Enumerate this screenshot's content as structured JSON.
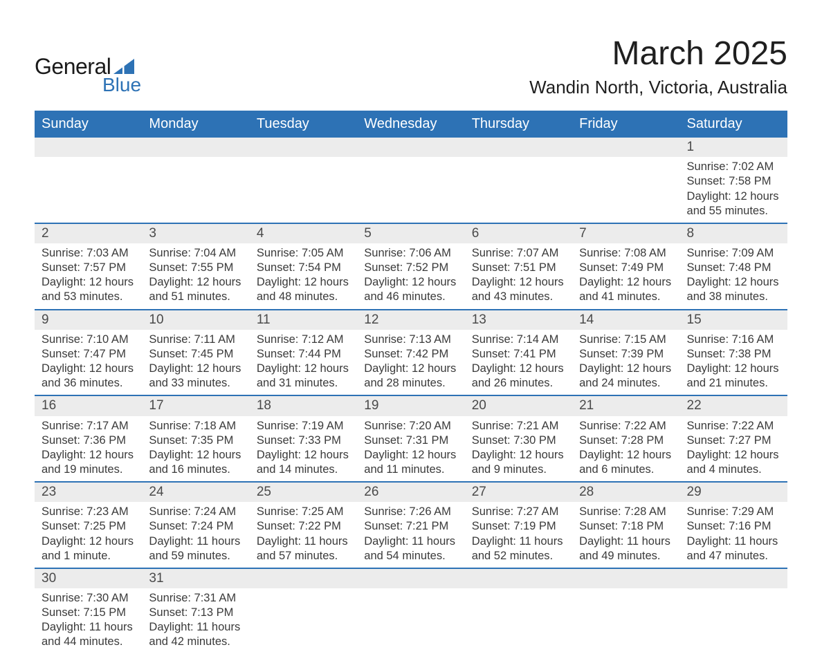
{
  "logo": {
    "text_general": "General",
    "text_blue": "Blue",
    "sail_color": "#2d72b5"
  },
  "title": "March 2025",
  "location": "Wandin North, Victoria, Australia",
  "header_bg": "#2d72b5",
  "header_text_color": "#ffffff",
  "daynum_bg": "#ececec",
  "border_color": "#2d72b5",
  "text_color": "#3a3a3a",
  "font_family": "Arial",
  "title_fontsize": 48,
  "location_fontsize": 26,
  "header_fontsize": 20,
  "body_fontsize": 16.5,
  "weekdays": [
    "Sunday",
    "Monday",
    "Tuesday",
    "Wednesday",
    "Thursday",
    "Friday",
    "Saturday"
  ],
  "weeks": [
    [
      null,
      null,
      null,
      null,
      null,
      null,
      {
        "n": "1",
        "sr": "Sunrise: 7:02 AM",
        "ss": "Sunset: 7:58 PM",
        "dl": "Daylight: 12 hours and 55 minutes."
      }
    ],
    [
      {
        "n": "2",
        "sr": "Sunrise: 7:03 AM",
        "ss": "Sunset: 7:57 PM",
        "dl": "Daylight: 12 hours and 53 minutes."
      },
      {
        "n": "3",
        "sr": "Sunrise: 7:04 AM",
        "ss": "Sunset: 7:55 PM",
        "dl": "Daylight: 12 hours and 51 minutes."
      },
      {
        "n": "4",
        "sr": "Sunrise: 7:05 AM",
        "ss": "Sunset: 7:54 PM",
        "dl": "Daylight: 12 hours and 48 minutes."
      },
      {
        "n": "5",
        "sr": "Sunrise: 7:06 AM",
        "ss": "Sunset: 7:52 PM",
        "dl": "Daylight: 12 hours and 46 minutes."
      },
      {
        "n": "6",
        "sr": "Sunrise: 7:07 AM",
        "ss": "Sunset: 7:51 PM",
        "dl": "Daylight: 12 hours and 43 minutes."
      },
      {
        "n": "7",
        "sr": "Sunrise: 7:08 AM",
        "ss": "Sunset: 7:49 PM",
        "dl": "Daylight: 12 hours and 41 minutes."
      },
      {
        "n": "8",
        "sr": "Sunrise: 7:09 AM",
        "ss": "Sunset: 7:48 PM",
        "dl": "Daylight: 12 hours and 38 minutes."
      }
    ],
    [
      {
        "n": "9",
        "sr": "Sunrise: 7:10 AM",
        "ss": "Sunset: 7:47 PM",
        "dl": "Daylight: 12 hours and 36 minutes."
      },
      {
        "n": "10",
        "sr": "Sunrise: 7:11 AM",
        "ss": "Sunset: 7:45 PM",
        "dl": "Daylight: 12 hours and 33 minutes."
      },
      {
        "n": "11",
        "sr": "Sunrise: 7:12 AM",
        "ss": "Sunset: 7:44 PM",
        "dl": "Daylight: 12 hours and 31 minutes."
      },
      {
        "n": "12",
        "sr": "Sunrise: 7:13 AM",
        "ss": "Sunset: 7:42 PM",
        "dl": "Daylight: 12 hours and 28 minutes."
      },
      {
        "n": "13",
        "sr": "Sunrise: 7:14 AM",
        "ss": "Sunset: 7:41 PM",
        "dl": "Daylight: 12 hours and 26 minutes."
      },
      {
        "n": "14",
        "sr": "Sunrise: 7:15 AM",
        "ss": "Sunset: 7:39 PM",
        "dl": "Daylight: 12 hours and 24 minutes."
      },
      {
        "n": "15",
        "sr": "Sunrise: 7:16 AM",
        "ss": "Sunset: 7:38 PM",
        "dl": "Daylight: 12 hours and 21 minutes."
      }
    ],
    [
      {
        "n": "16",
        "sr": "Sunrise: 7:17 AM",
        "ss": "Sunset: 7:36 PM",
        "dl": "Daylight: 12 hours and 19 minutes."
      },
      {
        "n": "17",
        "sr": "Sunrise: 7:18 AM",
        "ss": "Sunset: 7:35 PM",
        "dl": "Daylight: 12 hours and 16 minutes."
      },
      {
        "n": "18",
        "sr": "Sunrise: 7:19 AM",
        "ss": "Sunset: 7:33 PM",
        "dl": "Daylight: 12 hours and 14 minutes."
      },
      {
        "n": "19",
        "sr": "Sunrise: 7:20 AM",
        "ss": "Sunset: 7:31 PM",
        "dl": "Daylight: 12 hours and 11 minutes."
      },
      {
        "n": "20",
        "sr": "Sunrise: 7:21 AM",
        "ss": "Sunset: 7:30 PM",
        "dl": "Daylight: 12 hours and 9 minutes."
      },
      {
        "n": "21",
        "sr": "Sunrise: 7:22 AM",
        "ss": "Sunset: 7:28 PM",
        "dl": "Daylight: 12 hours and 6 minutes."
      },
      {
        "n": "22",
        "sr": "Sunrise: 7:22 AM",
        "ss": "Sunset: 7:27 PM",
        "dl": "Daylight: 12 hours and 4 minutes."
      }
    ],
    [
      {
        "n": "23",
        "sr": "Sunrise: 7:23 AM",
        "ss": "Sunset: 7:25 PM",
        "dl": "Daylight: 12 hours and 1 minute."
      },
      {
        "n": "24",
        "sr": "Sunrise: 7:24 AM",
        "ss": "Sunset: 7:24 PM",
        "dl": "Daylight: 11 hours and 59 minutes."
      },
      {
        "n": "25",
        "sr": "Sunrise: 7:25 AM",
        "ss": "Sunset: 7:22 PM",
        "dl": "Daylight: 11 hours and 57 minutes."
      },
      {
        "n": "26",
        "sr": "Sunrise: 7:26 AM",
        "ss": "Sunset: 7:21 PM",
        "dl": "Daylight: 11 hours and 54 minutes."
      },
      {
        "n": "27",
        "sr": "Sunrise: 7:27 AM",
        "ss": "Sunset: 7:19 PM",
        "dl": "Daylight: 11 hours and 52 minutes."
      },
      {
        "n": "28",
        "sr": "Sunrise: 7:28 AM",
        "ss": "Sunset: 7:18 PM",
        "dl": "Daylight: 11 hours and 49 minutes."
      },
      {
        "n": "29",
        "sr": "Sunrise: 7:29 AM",
        "ss": "Sunset: 7:16 PM",
        "dl": "Daylight: 11 hours and 47 minutes."
      }
    ],
    [
      {
        "n": "30",
        "sr": "Sunrise: 7:30 AM",
        "ss": "Sunset: 7:15 PM",
        "dl": "Daylight: 11 hours and 44 minutes."
      },
      {
        "n": "31",
        "sr": "Sunrise: 7:31 AM",
        "ss": "Sunset: 7:13 PM",
        "dl": "Daylight: 11 hours and 42 minutes."
      },
      null,
      null,
      null,
      null,
      null
    ]
  ]
}
